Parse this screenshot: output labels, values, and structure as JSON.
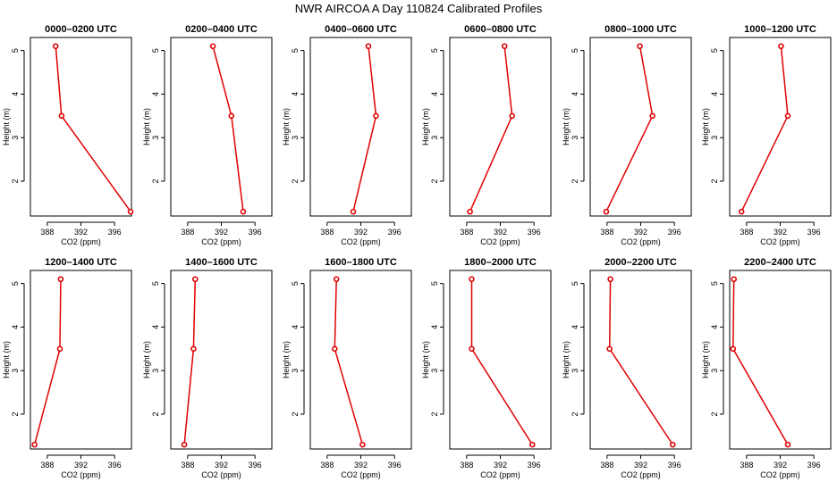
{
  "title": "NWR AIRCOA A  Day 110824  Calibrated Profiles",
  "colors": {
    "series": "#e00000",
    "axis": "#000000",
    "background": "#ffffff"
  },
  "chart_data": {
    "type": "line",
    "xlabel": "CO2 (ppm)",
    "ylabel": "Height (m)",
    "xlim": [
      386,
      398
    ],
    "ylim": [
      1.2,
      5.3
    ],
    "x_ticks": [
      388,
      392,
      396
    ],
    "y_ticks": [
      2,
      3,
      4,
      5
    ],
    "grid": false,
    "panels": [
      {
        "title": "0000–0200 UTC",
        "points": [
          {
            "x": 389.0,
            "y": 5.1
          },
          {
            "x": 389.7,
            "y": 3.5
          },
          {
            "x": 397.9,
            "y": 1.3
          }
        ]
      },
      {
        "title": "0200–0400 UTC",
        "points": [
          {
            "x": 391.0,
            "y": 5.1
          },
          {
            "x": 393.2,
            "y": 3.5
          },
          {
            "x": 394.6,
            "y": 1.3
          }
        ]
      },
      {
        "title": "0400–0600 UTC",
        "points": [
          {
            "x": 392.9,
            "y": 5.1
          },
          {
            "x": 393.8,
            "y": 3.5
          },
          {
            "x": 391.1,
            "y": 1.3
          }
        ]
      },
      {
        "title": "0600–0800 UTC",
        "points": [
          {
            "x": 392.5,
            "y": 5.1
          },
          {
            "x": 393.4,
            "y": 3.5
          },
          {
            "x": 388.4,
            "y": 1.3
          }
        ]
      },
      {
        "title": "0800–1000 UTC",
        "points": [
          {
            "x": 391.9,
            "y": 5.1
          },
          {
            "x": 393.4,
            "y": 3.5
          },
          {
            "x": 387.9,
            "y": 1.3
          }
        ]
      },
      {
        "title": "1000–1200 UTC",
        "points": [
          {
            "x": 392.1,
            "y": 5.1
          },
          {
            "x": 392.9,
            "y": 3.5
          },
          {
            "x": 387.4,
            "y": 1.3
          }
        ]
      },
      {
        "title": "1200–1400 UTC",
        "points": [
          {
            "x": 389.6,
            "y": 5.1
          },
          {
            "x": 389.5,
            "y": 3.5
          },
          {
            "x": 386.5,
            "y": 1.3
          }
        ]
      },
      {
        "title": "1400–1600 UTC",
        "points": [
          {
            "x": 388.9,
            "y": 5.1
          },
          {
            "x": 388.7,
            "y": 3.5
          },
          {
            "x": 387.6,
            "y": 1.3
          }
        ]
      },
      {
        "title": "1600–1800 UTC",
        "points": [
          {
            "x": 389.1,
            "y": 5.1
          },
          {
            "x": 388.9,
            "y": 3.5
          },
          {
            "x": 392.2,
            "y": 1.3
          }
        ]
      },
      {
        "title": "1800–2000 UTC",
        "points": [
          {
            "x": 388.6,
            "y": 5.1
          },
          {
            "x": 388.6,
            "y": 3.5
          },
          {
            "x": 395.8,
            "y": 1.3
          }
        ]
      },
      {
        "title": "2000–2200 UTC",
        "points": [
          {
            "x": 388.4,
            "y": 5.1
          },
          {
            "x": 388.3,
            "y": 3.5
          },
          {
            "x": 395.8,
            "y": 1.3
          }
        ]
      },
      {
        "title": "2200–2400 UTC",
        "points": [
          {
            "x": 386.5,
            "y": 5.1
          },
          {
            "x": 386.4,
            "y": 3.5
          },
          {
            "x": 392.9,
            "y": 1.3
          }
        ]
      }
    ]
  }
}
